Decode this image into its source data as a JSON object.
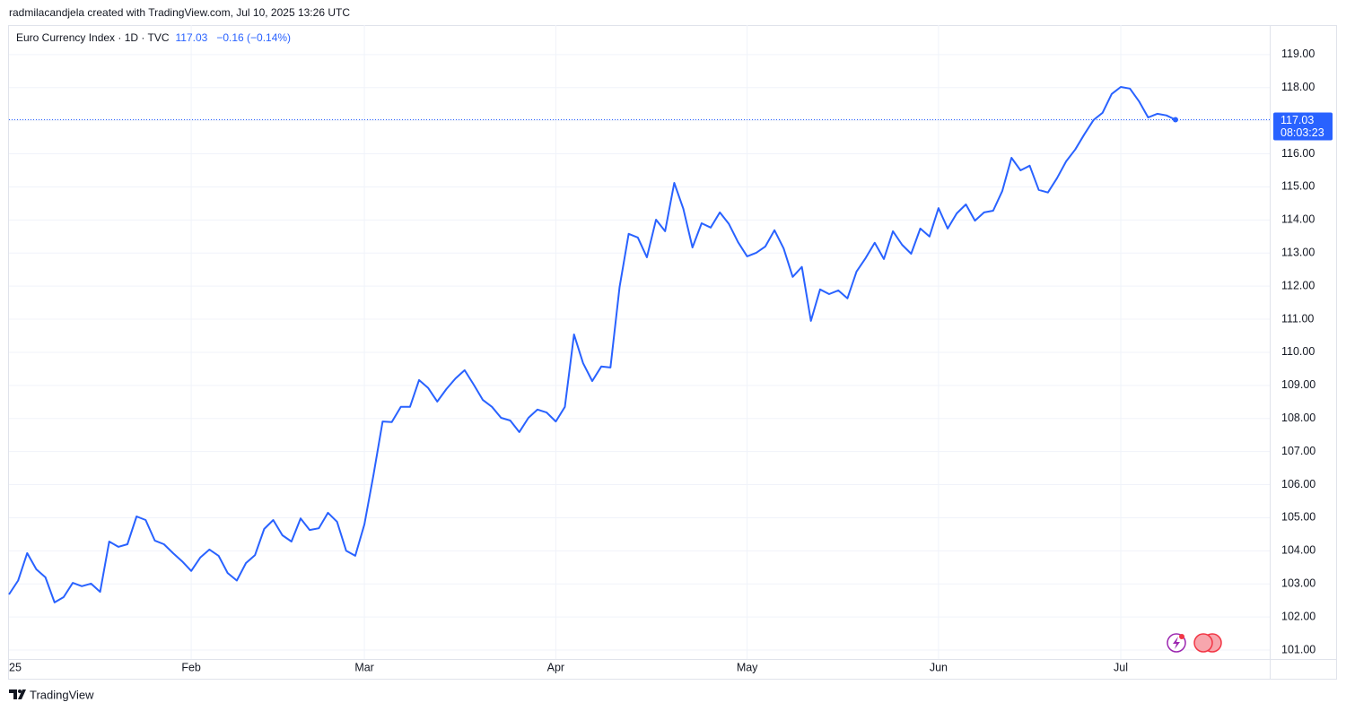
{
  "header": "radmilacandjela created with TradingView.com, Jul 10, 2025 13:26 UTC",
  "chart_data": {
    "type": "line",
    "title": "Euro Currency Index · 1D · TVC",
    "change": "−0.16 (−0.14%)",
    "countdown": "08:03:23",
    "color": "#2962ff",
    "grid": true,
    "categories": [
      "25",
      null,
      null,
      null,
      null,
      null,
      null,
      null,
      null,
      null,
      null,
      null,
      null,
      null,
      null,
      null,
      null,
      null,
      null,
      null,
      "Feb",
      null,
      null,
      null,
      null,
      null,
      null,
      null,
      null,
      null,
      null,
      null,
      null,
      null,
      null,
      null,
      null,
      null,
      null,
      "Mar",
      null,
      null,
      null,
      null,
      null,
      null,
      null,
      null,
      null,
      null,
      null,
      null,
      null,
      null,
      null,
      null,
      null,
      null,
      null,
      null,
      "Apr",
      null,
      null,
      null,
      null,
      null,
      null,
      null,
      null,
      null,
      null,
      null,
      null,
      null,
      null,
      null,
      null,
      null,
      null,
      null,
      null,
      "May",
      null,
      null,
      null,
      null,
      null,
      null,
      null,
      null,
      null,
      null,
      null,
      null,
      null,
      null,
      null,
      null,
      null,
      null,
      null,
      null,
      "Jun",
      null,
      null,
      null,
      null,
      null,
      null,
      null,
      null,
      null,
      null,
      null,
      null,
      null,
      null,
      null,
      null,
      null,
      null,
      null,
      "Jul",
      null,
      null,
      null,
      null,
      null,
      null
    ],
    "values": [
      102.68,
      103.1,
      103.93,
      103.44,
      103.2,
      102.44,
      102.6,
      103.03,
      102.93,
      103.01,
      102.76,
      104.28,
      104.12,
      104.2,
      105.04,
      104.93,
      104.31,
      104.2,
      103.93,
      103.68,
      103.39,
      103.8,
      104.04,
      103.85,
      103.33,
      103.1,
      103.63,
      103.87,
      104.66,
      104.93,
      104.47,
      104.28,
      104.98,
      104.63,
      104.68,
      105.15,
      104.88,
      104.0,
      103.85,
      104.8,
      106.29,
      107.91,
      107.89,
      108.35,
      108.35,
      109.16,
      108.92,
      108.51,
      108.89,
      109.21,
      109.46,
      109.02,
      108.56,
      108.35,
      108.02,
      107.94,
      107.59,
      108.02,
      108.27,
      108.18,
      107.91,
      108.35,
      110.54,
      109.67,
      109.13,
      109.57,
      109.54,
      111.98,
      113.58,
      113.47,
      112.87,
      114.01,
      113.66,
      115.12,
      114.34,
      113.17,
      113.9,
      113.77,
      114.23,
      113.88,
      113.33,
      112.9,
      113.01,
      113.2,
      113.69,
      113.14,
      112.28,
      112.58,
      110.95,
      111.9,
      111.76,
      111.87,
      111.63,
      112.44,
      112.85,
      113.31,
      112.82,
      113.66,
      113.25,
      112.98,
      113.74,
      113.5,
      114.36,
      113.74,
      114.2,
      114.47,
      113.98,
      114.23,
      114.28,
      114.88,
      115.88,
      115.5,
      115.64,
      114.91,
      114.83,
      115.26,
      115.77,
      116.13,
      116.59,
      117.02,
      117.24,
      117.81,
      118.02,
      117.97,
      117.59,
      117.1,
      117.21,
      117.16,
      117.03
    ],
    "ylim": [
      100.73,
      119.89
    ],
    "yticks": [
      {
        "value": 101,
        "label": "101.00"
      },
      {
        "value": 102,
        "label": "102.00"
      },
      {
        "value": 103,
        "label": "103.00"
      },
      {
        "value": 104,
        "label": "104.00"
      },
      {
        "value": 105,
        "label": "105.00"
      },
      {
        "value": 106,
        "label": "106.00"
      },
      {
        "value": 107,
        "label": "107.00"
      },
      {
        "value": 108,
        "label": "108.00"
      },
      {
        "value": 109,
        "label": "109.00"
      },
      {
        "value": 110,
        "label": "110.00"
      },
      {
        "value": 111,
        "label": "111.00"
      },
      {
        "value": 112,
        "label": "112.00"
      },
      {
        "value": 113,
        "label": "113.00"
      },
      {
        "value": 114,
        "label": "114.00"
      },
      {
        "value": 115,
        "label": "115.00"
      },
      {
        "value": 116,
        "label": "116.00"
      },
      {
        "value": 117,
        "label": "117.00"
      },
      {
        "value": 118,
        "label": "118.00"
      },
      {
        "value": 119,
        "label": "119.00"
      }
    ]
  },
  "footer": "TradingView"
}
